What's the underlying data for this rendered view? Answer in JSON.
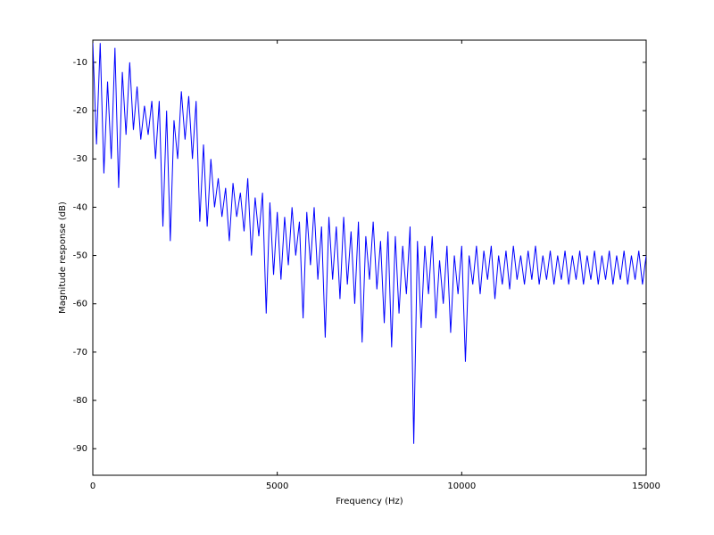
{
  "chart_data": {
    "type": "line",
    "x_label": "Frequency (Hz)",
    "y_label": "Magnitude response (dB)",
    "xlim": [
      0,
      15000
    ],
    "xticks": [
      0,
      5000,
      10000,
      15000
    ],
    "ylim": [
      -95.5,
      -5.4
    ],
    "yticks": [
      -90,
      -80,
      -70,
      -60,
      -50,
      -40,
      -30,
      -20,
      -10
    ],
    "grid": false,
    "series": [
      {
        "color": "#0000ff",
        "x": [
          0,
          100,
          200,
          300,
          400,
          500,
          600,
          700,
          800,
          900,
          1000,
          1100,
          1200,
          1300,
          1400,
          1500,
          1600,
          1700,
          1800,
          1900,
          2000,
          2100,
          2200,
          2300,
          2400,
          2500,
          2600,
          2700,
          2800,
          2900,
          3000,
          3100,
          3200,
          3300,
          3400,
          3500,
          3600,
          3700,
          3800,
          3900,
          4000,
          4100,
          4200,
          4300,
          4400,
          4500,
          4600,
          4700,
          4800,
          4900,
          5000,
          5100,
          5200,
          5300,
          5400,
          5500,
          5600,
          5700,
          5800,
          5900,
          6000,
          6100,
          6200,
          6300,
          6400,
          6500,
          6600,
          6700,
          6800,
          6900,
          7000,
          7100,
          7200,
          7300,
          7400,
          7500,
          7600,
          7700,
          7800,
          7900,
          8000,
          8100,
          8200,
          8300,
          8400,
          8500,
          8600,
          8700,
          8800,
          8900,
          9000,
          9100,
          9200,
          9300,
          9400,
          9500,
          9600,
          9700,
          9800,
          9900,
          10000,
          10100,
          10200,
          10300,
          10400,
          10500,
          10600,
          10700,
          10800,
          10900,
          11000,
          11100,
          11200,
          11300,
          11400,
          11500,
          11600,
          11700,
          11800,
          11900,
          12000,
          12100,
          12200,
          12300,
          12400,
          12500,
          12600,
          12700,
          12800,
          12900,
          13000,
          13100,
          13200,
          13300,
          13400,
          13500,
          13600,
          13700,
          13800,
          13900,
          14000,
          14100,
          14200,
          14300,
          14400,
          14500,
          14600,
          14700,
          14800,
          14900,
          15000
        ],
        "values": [
          -6,
          -27,
          -6,
          -33,
          -14,
          -30,
          -7,
          -36,
          -12,
          -25,
          -10,
          -24,
          -15,
          -26,
          -19,
          -25,
          -18,
          -30,
          -18,
          -44,
          -20,
          -47,
          -22,
          -30,
          -16,
          -26,
          -17,
          -30,
          -18,
          -43,
          -27,
          -44,
          -30,
          -40,
          -34,
          -42,
          -36,
          -47,
          -35,
          -42,
          -37,
          -45,
          -34,
          -50,
          -38,
          -46,
          -37,
          -62,
          -39,
          -54,
          -41,
          -55,
          -42,
          -52,
          -40,
          -50,
          -43,
          -63,
          -41,
          -52,
          -40,
          -55,
          -44,
          -67,
          -42,
          -55,
          -44,
          -59,
          -42,
          -56,
          -45,
          -60,
          -43,
          -68,
          -46,
          -55,
          -43,
          -57,
          -47,
          -64,
          -45,
          -69,
          -46,
          -62,
          -48,
          -58,
          -44,
          -89,
          -47,
          -65,
          -48,
          -58,
          -46,
          -63,
          -51,
          -60,
          -48,
          -66,
          -50,
          -58,
          -48,
          -72,
          -50,
          -56,
          -48,
          -58,
          -49,
          -55,
          -48,
          -59,
          -50,
          -56,
          -49,
          -57,
          -48,
          -55,
          -50,
          -56,
          -49,
          -55,
          -48,
          -56,
          -50,
          -55,
          -49,
          -56,
          -50,
          -55,
          -49,
          -56,
          -50,
          -55,
          -49,
          -56,
          -50,
          -55,
          -49,
          -56,
          -50,
          -55,
          -49,
          -56,
          -50,
          -55,
          -49,
          -56,
          -50,
          -55,
          -49,
          -56,
          -50
        ]
      }
    ]
  }
}
